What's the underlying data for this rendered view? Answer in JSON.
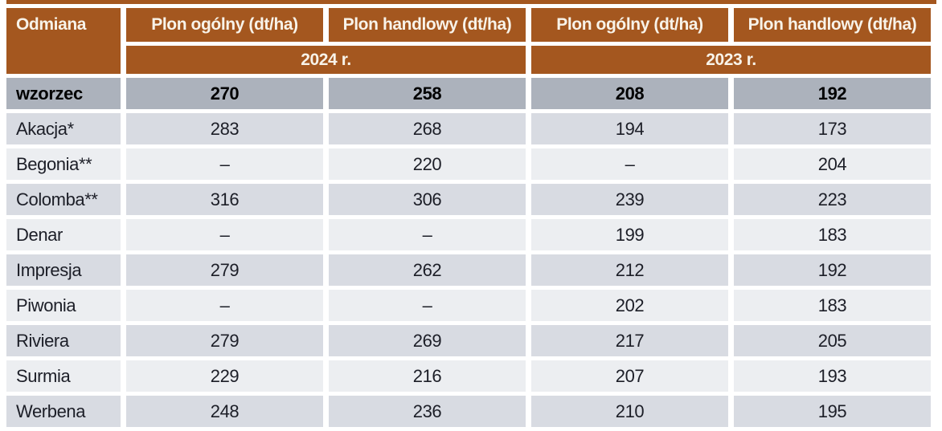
{
  "chart_data": {
    "type": "table",
    "header": {
      "variety_col": "Odmiana",
      "measure_cols": [
        "Plon ogólny (dt/ha)",
        "Plon handlowy (dt/ha)",
        "Plon ogólny (dt/ha)",
        "Plon handlowy (dt/ha)"
      ],
      "year_groups": [
        "2024 r.",
        "2023 r."
      ]
    },
    "reference_row": {
      "name": "wzorzec",
      "values": [
        "270",
        "258",
        "208",
        "192"
      ]
    },
    "rows": [
      {
        "name": "Akacja*",
        "values": [
          "283",
          "268",
          "194",
          "173"
        ]
      },
      {
        "name": "Begonia**",
        "values": [
          "–",
          "220",
          "–",
          "204"
        ]
      },
      {
        "name": "Colomba**",
        "values": [
          "316",
          "306",
          "239",
          "223"
        ]
      },
      {
        "name": "Denar",
        "values": [
          "–",
          "–",
          "199",
          "183"
        ]
      },
      {
        "name": "Impresja",
        "values": [
          "279",
          "262",
          "212",
          "192"
        ]
      },
      {
        "name": "Piwonia",
        "values": [
          "–",
          "–",
          "202",
          "183"
        ]
      },
      {
        "name": "Riviera",
        "values": [
          "279",
          "269",
          "217",
          "205"
        ]
      },
      {
        "name": "Surmia",
        "values": [
          "229",
          "216",
          "207",
          "193"
        ]
      },
      {
        "name": "Werbena",
        "values": [
          "248",
          "236",
          "210",
          "195"
        ]
      }
    ]
  },
  "colors": {
    "header_bg": "#A4571F",
    "header_text": "#F8F3E9",
    "reference_bg": "#ACB2BC",
    "stripe_dark": "#D8DBE2",
    "stripe_light": "#ECEEF1",
    "body_text": "#1C1E27",
    "page_bg": "#FFFFFF"
  }
}
